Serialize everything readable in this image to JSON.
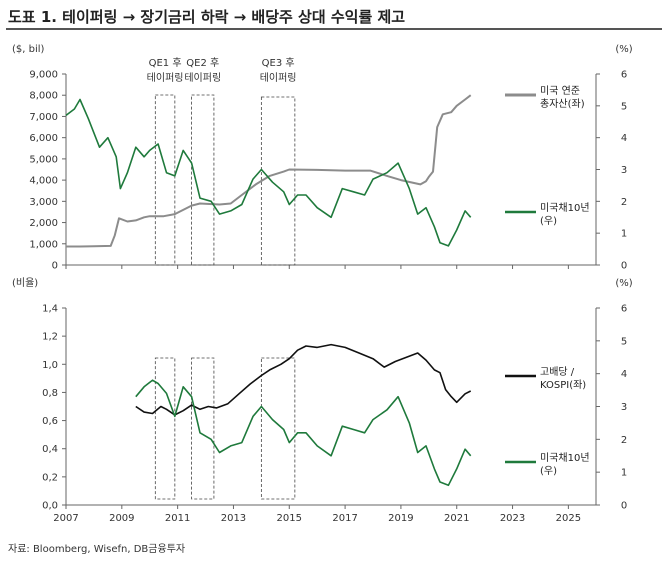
{
  "title": "도표 1. 테이퍼링 → 장기금리 하락 → 배당주 상대 수익률 제고",
  "source": "자료: Bloomberg, Wisefn, DB금융투자",
  "colors": {
    "gray": "#8c8c8c",
    "green": "#1f7a3c",
    "black": "#111111",
    "axis": "#666666"
  },
  "chart_data": [
    {
      "type": "line",
      "left_unit": "($, bil)",
      "right_unit": "(%)",
      "ylim_left": [
        0,
        9000
      ],
      "ylim_right": [
        0,
        6
      ],
      "left_ticks": [
        "0",
        "1,000",
        "2,000",
        "3,000",
        "4,000",
        "5,000",
        "6,000",
        "7,000",
        "8,000",
        "9,000"
      ],
      "right_ticks": [
        "0",
        "1",
        "2",
        "3",
        "4",
        "5",
        "6"
      ],
      "annotations": [
        {
          "label": "QE1 후",
          "label2": "테이퍼링",
          "x": [
            2010.2,
            2010.9
          ]
        },
        {
          "label": "QE2 후",
          "label2": "테이퍼링",
          "x": [
            2011.5,
            2012.3
          ]
        },
        {
          "label": "QE3 후",
          "label2": "테이퍼링",
          "x": [
            2014.0,
            2015.2
          ]
        }
      ],
      "series": [
        {
          "name": "미국 연준",
          "name2": "총자산(좌)",
          "axis": "left",
          "color": "gray",
          "x": [
            2007,
            2007.5,
            2008.0,
            2008.6,
            2008.75,
            2008.9,
            2009.2,
            2009.5,
            2009.8,
            2010.0,
            2010.5,
            2010.9,
            2011.5,
            2011.8,
            2012.5,
            2012.9,
            2013.3,
            2013.8,
            2014.3,
            2014.8,
            2015.0,
            2016.0,
            2017.0,
            2017.9,
            2018.5,
            2019.0,
            2019.7,
            2019.9,
            2020.0,
            2020.15,
            2020.3,
            2020.5,
            2020.8,
            2021.0,
            2021.3,
            2021.5
          ],
          "y": [
            870,
            870,
            880,
            900,
            1400,
            2200,
            2050,
            2100,
            2250,
            2300,
            2300,
            2400,
            2800,
            2900,
            2850,
            2900,
            3300,
            3800,
            4200,
            4400,
            4500,
            4480,
            4450,
            4450,
            4200,
            4000,
            3800,
            3950,
            4150,
            4400,
            6500,
            7100,
            7200,
            7500,
            7800,
            8000
          ]
        },
        {
          "name": "미국채10년",
          "name2": "(우)",
          "axis": "right",
          "color": "green",
          "x": [
            2007,
            2007.3,
            2007.5,
            2007.8,
            2008.2,
            2008.5,
            2008.8,
            2008.95,
            2009.2,
            2009.5,
            2009.8,
            2010.0,
            2010.3,
            2010.6,
            2010.9,
            2011.2,
            2011.5,
            2011.8,
            2012.2,
            2012.5,
            2012.9,
            2013.3,
            2013.7,
            2014.0,
            2014.4,
            2014.8,
            2015.0,
            2015.3,
            2015.6,
            2016.0,
            2016.5,
            2016.9,
            2017.3,
            2017.7,
            2018.0,
            2018.5,
            2018.9,
            2019.3,
            2019.6,
            2019.9,
            2020.2,
            2020.4,
            2020.7,
            2021.0,
            2021.3,
            2021.5
          ],
          "y": [
            4.7,
            4.9,
            5.2,
            4.6,
            3.7,
            4.0,
            3.4,
            2.4,
            2.9,
            3.7,
            3.4,
            3.6,
            3.8,
            2.9,
            2.8,
            3.6,
            3.2,
            2.1,
            2.0,
            1.6,
            1.7,
            1.9,
            2.7,
            3.0,
            2.6,
            2.3,
            1.9,
            2.2,
            2.2,
            1.8,
            1.5,
            2.4,
            2.3,
            2.2,
            2.7,
            2.9,
            3.2,
            2.4,
            1.6,
            1.8,
            1.2,
            0.7,
            0.6,
            1.1,
            1.7,
            1.5
          ]
        }
      ]
    },
    {
      "type": "line",
      "left_unit": "(비율)",
      "right_unit": "(%)",
      "ylim_left": [
        0,
        1.4
      ],
      "ylim_right": [
        0,
        6
      ],
      "left_ticks": [
        "0,0",
        "0,2",
        "0,4",
        "0,6",
        "0,8",
        "1,0",
        "1,2",
        "1,4"
      ],
      "right_ticks": [
        "0",
        "1",
        "2",
        "3",
        "4",
        "5",
        "6"
      ],
      "x_ticks": [
        "2007",
        "2009",
        "2011",
        "2013",
        "2015",
        "2017",
        "2019",
        "2021",
        "2023",
        "2025"
      ],
      "series": [
        {
          "name": "고배당 /",
          "name2": "KOSPI(좌)",
          "axis": "left",
          "color": "black",
          "x": [
            2009.5,
            2009.8,
            2010.1,
            2010.4,
            2010.6,
            2010.9,
            2011.2,
            2011.5,
            2011.8,
            2012.1,
            2012.4,
            2012.8,
            2013.2,
            2013.6,
            2014.0,
            2014.3,
            2014.7,
            2015.0,
            2015.3,
            2015.6,
            2016.0,
            2016.5,
            2017.0,
            2017.5,
            2018.0,
            2018.4,
            2018.8,
            2019.2,
            2019.6,
            2019.9,
            2020.2,
            2020.4,
            2020.6,
            2020.8,
            2021.0,
            2021.3,
            2021.5
          ],
          "y": [
            0.7,
            0.66,
            0.65,
            0.7,
            0.68,
            0.64,
            0.67,
            0.71,
            0.68,
            0.7,
            0.69,
            0.72,
            0.79,
            0.86,
            0.92,
            0.96,
            1.0,
            1.04,
            1.1,
            1.13,
            1.12,
            1.14,
            1.12,
            1.08,
            1.04,
            0.98,
            1.02,
            1.05,
            1.08,
            1.03,
            0.96,
            0.94,
            0.82,
            0.77,
            0.73,
            0.79,
            0.81
          ]
        },
        {
          "name": "미국채10년",
          "name2": "(우)",
          "axis": "right",
          "color": "green",
          "x": [
            2009.5,
            2009.8,
            2010.1,
            2010.3,
            2010.6,
            2010.9,
            2011.2,
            2011.5,
            2011.8,
            2012.2,
            2012.5,
            2012.9,
            2013.3,
            2013.7,
            2014.0,
            2014.4,
            2014.8,
            2015.0,
            2015.3,
            2015.6,
            2016.0,
            2016.5,
            2016.9,
            2017.3,
            2017.7,
            2018.0,
            2018.5,
            2018.9,
            2019.3,
            2019.6,
            2019.9,
            2020.2,
            2020.4,
            2020.7,
            2021.0,
            2021.3,
            2021.5
          ],
          "y": [
            3.3,
            3.6,
            3.8,
            3.7,
            3.4,
            2.7,
            3.6,
            3.3,
            2.2,
            2.0,
            1.6,
            1.8,
            1.9,
            2.7,
            3.0,
            2.6,
            2.3,
            1.9,
            2.2,
            2.2,
            1.8,
            1.5,
            2.4,
            2.3,
            2.2,
            2.6,
            2.9,
            3.3,
            2.5,
            1.6,
            1.8,
            1.1,
            0.7,
            0.6,
            1.1,
            1.7,
            1.5
          ]
        }
      ]
    }
  ]
}
